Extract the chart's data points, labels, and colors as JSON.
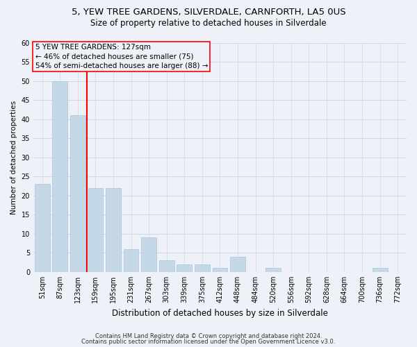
{
  "title1": "5, YEW TREE GARDENS, SILVERDALE, CARNFORTH, LA5 0US",
  "title2": "Size of property relative to detached houses in Silverdale",
  "xlabel": "Distribution of detached houses by size in Silverdale",
  "ylabel": "Number of detached properties",
  "categories": [
    "51sqm",
    "87sqm",
    "123sqm",
    "159sqm",
    "195sqm",
    "231sqm",
    "267sqm",
    "303sqm",
    "339sqm",
    "375sqm",
    "412sqm",
    "448sqm",
    "484sqm",
    "520sqm",
    "556sqm",
    "592sqm",
    "628sqm",
    "664sqm",
    "700sqm",
    "736sqm",
    "772sqm"
  ],
  "values": [
    23,
    50,
    41,
    22,
    22,
    6,
    9,
    3,
    2,
    2,
    1,
    4,
    0,
    1,
    0,
    0,
    0,
    0,
    0,
    1,
    0
  ],
  "bar_color": "#c5d8e8",
  "bar_edge_color": "#aac4d8",
  "grid_color": "#d0d8e8",
  "annotation_line1": "5 YEW TREE GARDENS: 127sqm",
  "annotation_line2": "← 46% of detached houses are smaller (75)",
  "annotation_line3": "54% of semi-detached houses are larger (88) →",
  "red_line_x": 2.5,
  "footer1": "Contains HM Land Registry data © Crown copyright and database right 2024.",
  "footer2": "Contains public sector information licensed under the Open Government Licence v3.0.",
  "ylim": [
    0,
    60
  ],
  "yticks": [
    0,
    5,
    10,
    15,
    20,
    25,
    30,
    35,
    40,
    45,
    50,
    55,
    60
  ],
  "background_color": "#eef2f8",
  "title1_fontsize": 9.5,
  "title2_fontsize": 8.5,
  "xlabel_fontsize": 8.5,
  "ylabel_fontsize": 7.5,
  "tick_fontsize": 7,
  "ann_fontsize": 7.5,
  "footer_fontsize": 6
}
